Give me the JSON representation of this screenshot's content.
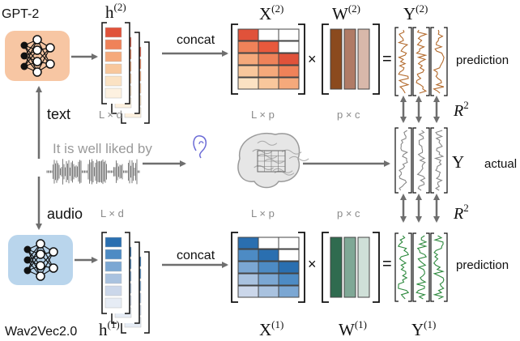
{
  "models": {
    "top": {
      "label": "GPT-2",
      "color": "#f7c6a3"
    },
    "bottom": {
      "label": "Wav2Vec2.0",
      "color": "#b9d5ec"
    }
  },
  "branches": {
    "text": "text",
    "audio": "audio"
  },
  "stimulus": {
    "sentence": "It is well liked by"
  },
  "top_row": {
    "h": "h",
    "h_sup": "(2)",
    "concat": "concat",
    "x": "X",
    "x_sup": "(2)",
    "w": "W",
    "w_sup": "(2)",
    "y": "Y",
    "y_sup": "(2)",
    "h_dim": "L × d",
    "x_dim": "L × p",
    "w_dim": "p × c",
    "times": "×",
    "equals": "=",
    "prediction": "prediction",
    "ramp": [
      "#e0523a",
      "#ef8259",
      "#f5a97b",
      "#f8c79c",
      "#fbe2c3",
      "#fdf1e0"
    ],
    "x_cells": [
      [
        "#e0523a",
        "#ffffff",
        "#ffffff"
      ],
      [
        "#ef8259",
        "#e8593c",
        "#ffffff"
      ],
      [
        "#f5a97b",
        "#ef8259",
        "#e0523a"
      ],
      [
        "#f8c79c",
        "#f5a97b",
        "#ef8259"
      ],
      [
        "#fbe2c3",
        "#f8c79c",
        "#f5a97b"
      ]
    ],
    "w_cols": [
      "#8b4a1e",
      "#b07b66",
      "#d8b8aa"
    ],
    "signal_color": "#b36a2c"
  },
  "bottom_row": {
    "h": "h",
    "h_sup": "(1)",
    "concat": "concat",
    "x": "X",
    "x_sup": "(1)",
    "w": "W",
    "w_sup": "(1)",
    "y": "Y",
    "y_sup": "(1)",
    "h_dim": "L × d",
    "x_dim": "L × p",
    "w_dim": "p × c",
    "times": "×",
    "equals": "=",
    "prediction": "prediction",
    "ramp": [
      "#2a6fb0",
      "#4d8bc4",
      "#7ba7d3",
      "#a9c2df",
      "#cbd7ea",
      "#e6ecf5"
    ],
    "x_cells": [
      [
        "#2a6fb0",
        "#ffffff",
        "#ffffff"
      ],
      [
        "#4d8bc4",
        "#2a6fb0",
        "#ffffff"
      ],
      [
        "#7ba7d3",
        "#4d8bc4",
        "#2a6fb0"
      ],
      [
        "#a9c2df",
        "#7ba7d3",
        "#4d8bc4"
      ],
      [
        "#cbd7ea",
        "#a9c2df",
        "#7ba7d3"
      ]
    ],
    "w_cols": [
      "#2f6b4f",
      "#7fa896",
      "#cfe0d8"
    ],
    "signal_color": "#2e8a3e"
  },
  "middle": {
    "y": "Y",
    "actual": "actual",
    "signal_color": "#888888"
  },
  "r2": {
    "r": "R",
    "sup": "2"
  },
  "colors": {
    "arrow": "#707070",
    "text_gray": "#8a8a8a",
    "black": "#111111"
  }
}
